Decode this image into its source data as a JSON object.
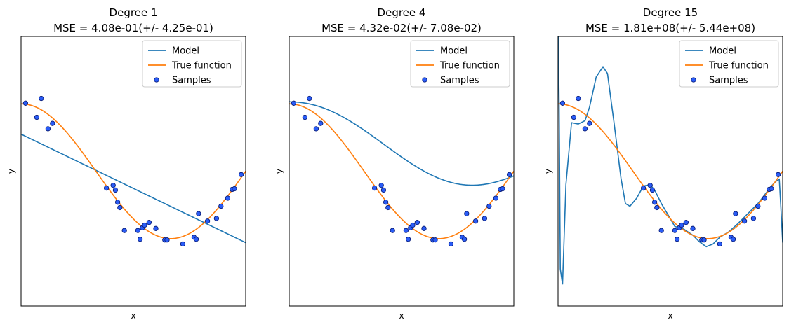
{
  "chart_data": [
    {
      "type": "line",
      "title": "Degree 1",
      "subtitle": "MSE = 4.08e-01(+/- 4.25e-01)",
      "xlabel": "x",
      "ylabel": "y",
      "xlim": [
        0,
        1
      ],
      "ylim": [
        -2,
        2
      ],
      "legend_position": "top-right",
      "series": [
        {
          "name": "Model",
          "type": "line",
          "color": "#1f77b4",
          "x": [
            0,
            1
          ],
          "y": [
            0.55,
            -1.06
          ]
        },
        {
          "name": "True function",
          "type": "line",
          "color": "#ff7f0e",
          "function": "cos(1.5*pi*x)"
        },
        {
          "name": "Samples",
          "type": "scatter",
          "color": "#0000ff",
          "x": [
            0.02,
            0.07,
            0.09,
            0.12,
            0.14,
            0.38,
            0.41,
            0.42,
            0.43,
            0.44,
            0.46,
            0.52,
            0.53,
            0.54,
            0.55,
            0.57,
            0.6,
            0.64,
            0.65,
            0.72,
            0.77,
            0.78,
            0.79,
            0.83,
            0.87,
            0.89,
            0.92,
            0.94,
            0.95,
            0.98
          ],
          "y": [
            1.01,
            0.8,
            1.08,
            0.63,
            0.71,
            -0.25,
            -0.21,
            -0.28,
            -0.46,
            -0.54,
            -0.88,
            -0.88,
            -1.01,
            -0.84,
            -0.8,
            -0.76,
            -0.85,
            -1.02,
            -1.02,
            -1.08,
            -0.98,
            -1.01,
            -0.63,
            -0.74,
            -0.7,
            -0.52,
            -0.4,
            -0.27,
            -0.26,
            -0.05
          ]
        }
      ]
    },
    {
      "type": "line",
      "title": "Degree 4",
      "subtitle": "MSE = 4.32e-02(+/- 7.08e-02)",
      "xlabel": "x",
      "ylabel": "y",
      "xlim": [
        0,
        1
      ],
      "ylim": [
        -2,
        2
      ],
      "legend_position": "top-right",
      "series": [
        {
          "name": "Model",
          "type": "line",
          "color": "#1f77b4",
          "function": "4th-order polynomial fit"
        },
        {
          "name": "True function",
          "type": "line",
          "color": "#ff7f0e",
          "function": "cos(1.5*pi*x)"
        },
        {
          "name": "Samples",
          "type": "scatter",
          "color": "#0000ff",
          "x": [
            0.02,
            0.07,
            0.09,
            0.12,
            0.14,
            0.38,
            0.41,
            0.42,
            0.43,
            0.44,
            0.46,
            0.52,
            0.53,
            0.54,
            0.55,
            0.57,
            0.6,
            0.64,
            0.65,
            0.72,
            0.77,
            0.78,
            0.79,
            0.83,
            0.87,
            0.89,
            0.92,
            0.94,
            0.95,
            0.98
          ],
          "y": [
            1.01,
            0.8,
            1.08,
            0.63,
            0.71,
            -0.25,
            -0.21,
            -0.28,
            -0.46,
            -0.54,
            -0.88,
            -0.88,
            -1.01,
            -0.84,
            -0.8,
            -0.76,
            -0.85,
            -1.02,
            -1.02,
            -1.08,
            -0.98,
            -1.01,
            -0.63,
            -0.74,
            -0.7,
            -0.52,
            -0.4,
            -0.27,
            -0.26,
            -0.05
          ]
        }
      ]
    },
    {
      "type": "line",
      "title": "Degree 15",
      "subtitle": "MSE = 1.81e+08(+/- 5.44e+08)",
      "xlabel": "x",
      "ylabel": "y",
      "xlim": [
        0,
        1
      ],
      "ylim": [
        -2,
        2
      ],
      "legend_position": "top-right",
      "series": [
        {
          "name": "Model",
          "type": "line",
          "color": "#1f77b4",
          "function": "15th-order polynomial fit (overfit)"
        },
        {
          "name": "True function",
          "type": "line",
          "color": "#ff7f0e",
          "function": "cos(1.5*pi*x)"
        },
        {
          "name": "Samples",
          "type": "scatter",
          "color": "#0000ff",
          "x": [
            0.02,
            0.07,
            0.09,
            0.12,
            0.14,
            0.38,
            0.41,
            0.42,
            0.43,
            0.44,
            0.46,
            0.52,
            0.53,
            0.54,
            0.55,
            0.57,
            0.6,
            0.64,
            0.65,
            0.72,
            0.77,
            0.78,
            0.79,
            0.83,
            0.87,
            0.89,
            0.92,
            0.94,
            0.95,
            0.98
          ],
          "y": [
            1.01,
            0.8,
            1.08,
            0.63,
            0.71,
            -0.25,
            -0.21,
            -0.28,
            -0.46,
            -0.54,
            -0.88,
            -0.88,
            -1.01,
            -0.84,
            -0.8,
            -0.76,
            -0.85,
            -1.02,
            -1.02,
            -1.08,
            -0.98,
            -1.01,
            -0.63,
            -0.74,
            -0.7,
            -0.52,
            -0.4,
            -0.27,
            -0.26,
            -0.05
          ]
        }
      ]
    }
  ]
}
